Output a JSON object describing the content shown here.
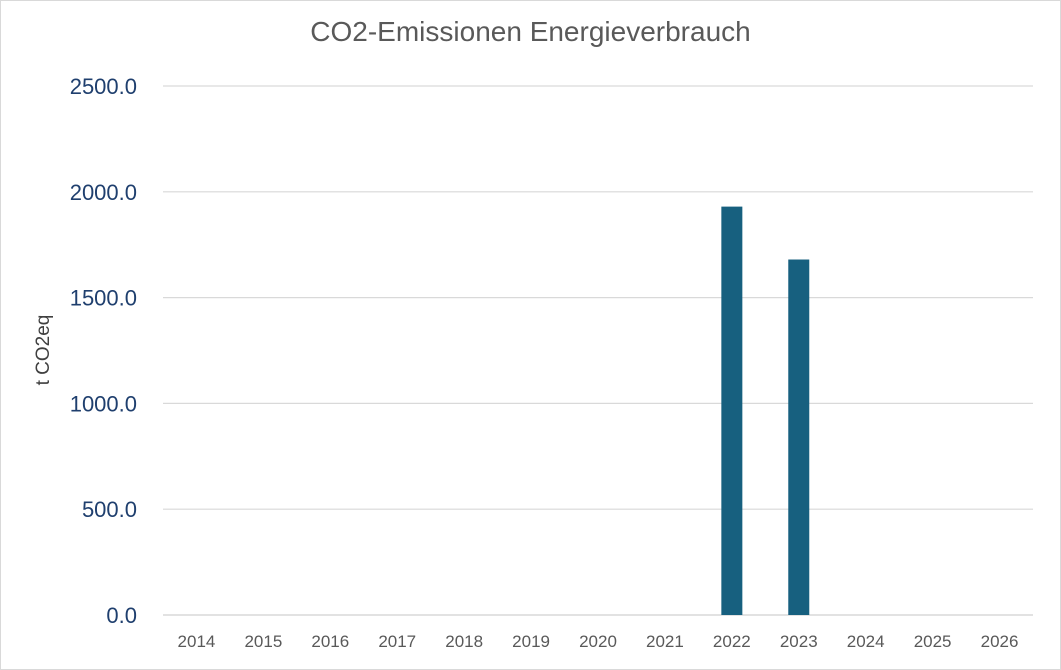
{
  "chart_data": {
    "type": "bar",
    "title": "CO2-Emissionen Energieverbrauch",
    "xlabel": "",
    "ylabel": "t CO2eq",
    "categories": [
      "2014",
      "2015",
      "2016",
      "2017",
      "2018",
      "2019",
      "2020",
      "2021",
      "2022",
      "2023",
      "2024",
      "2025",
      "2026"
    ],
    "series": [
      {
        "values": [
          0,
          0,
          0,
          0,
          0,
          0,
          0,
          0,
          1930,
          1680,
          0,
          0,
          0
        ]
      }
    ],
    "ylim": [
      0,
      2500
    ],
    "yticks": [
      "0.0",
      "500.0",
      "1000.0",
      "1500.0",
      "2000.0",
      "2500.0"
    ],
    "ytick_values": [
      0,
      500,
      1000,
      1500,
      2000,
      2500
    ],
    "grid": true,
    "legend": "none",
    "bar_color": "#17607f",
    "gridline_color": "#d9d9d9"
  }
}
